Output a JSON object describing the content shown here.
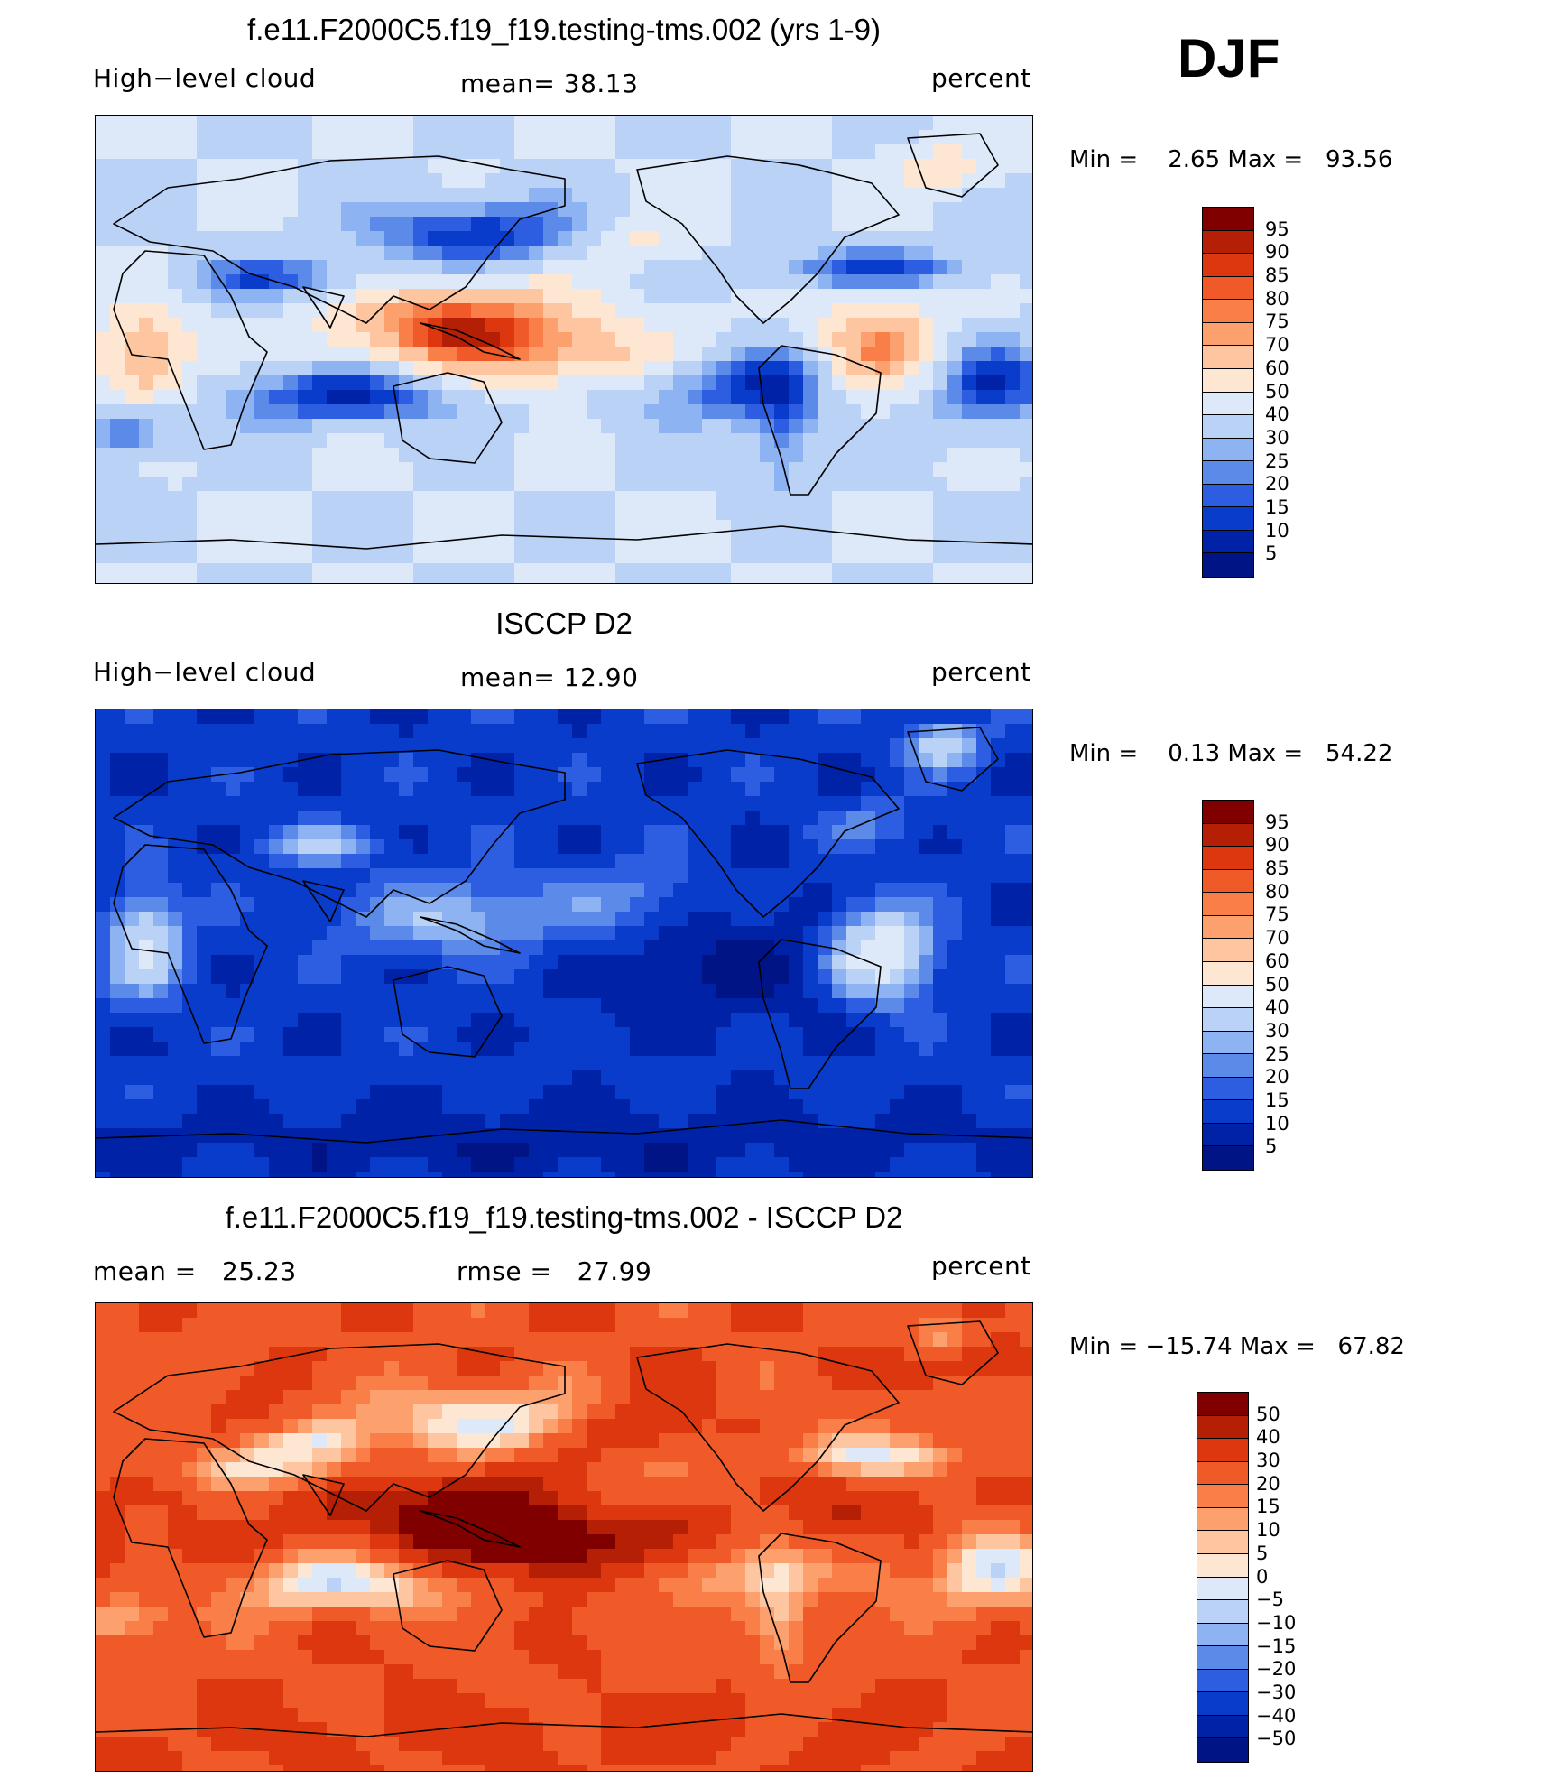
{
  "season": "DJF",
  "panels": [
    {
      "title": "f.e11.F2000C5.f19_f19.testing-tms.002 (yrs 1-9)",
      "left_label": "High−level cloud",
      "center_label": "mean=   38.13",
      "right_label": "percent",
      "minmax": "Min =    2.65 Max =   93.56",
      "field_kind": "model",
      "colorbar_labels": [
        "95",
        "90",
        "85",
        "80",
        "75",
        "70",
        "60",
        "50",
        "40",
        "30",
        "25",
        "20",
        "15",
        "10",
        "5"
      ],
      "colorbar_colors": [
        "#800000",
        "#b51f06",
        "#dd3710",
        "#f05a28",
        "#fa7e48",
        "#fca06e",
        "#fdc6a0",
        "#fde6d2",
        "#dde9f9",
        "#bad2f6",
        "#8db3f3",
        "#5b8ae8",
        "#2d5ee2",
        "#0a3ccc",
        "#0022a6",
        "#001486"
      ]
    },
    {
      "title": "ISCCP D2",
      "left_label": "High−level cloud",
      "center_label": "mean=   12.90",
      "right_label": "percent",
      "minmax": "Min =    0.13 Max =   54.22",
      "field_kind": "obs",
      "colorbar_labels": [
        "95",
        "90",
        "85",
        "80",
        "75",
        "70",
        "60",
        "50",
        "40",
        "30",
        "25",
        "20",
        "15",
        "10",
        "5"
      ],
      "colorbar_colors": [
        "#800000",
        "#b51f06",
        "#dd3710",
        "#f05a28",
        "#fa7e48",
        "#fca06e",
        "#fdc6a0",
        "#fde6d2",
        "#dde9f9",
        "#bad2f6",
        "#8db3f3",
        "#5b8ae8",
        "#2d5ee2",
        "#0a3ccc",
        "#0022a6",
        "#001486"
      ]
    },
    {
      "title": "f.e11.F2000C5.f19_f19.testing-tms.002 - ISCCP D2",
      "left_label": "mean =   25.23",
      "center_label": "rmse =   27.99",
      "right_label": "percent",
      "minmax": "Min = −15.74 Max =   67.82",
      "field_kind": "diff",
      "colorbar_labels": [
        "50",
        "40",
        "30",
        "20",
        "15",
        "10",
        "5",
        "0",
        "−5",
        "−10",
        "−15",
        "−20",
        "−30",
        "−40",
        "−50"
      ],
      "colorbar_colors": [
        "#800000",
        "#b51f06",
        "#dd3710",
        "#f05a28",
        "#fa7e48",
        "#fca06e",
        "#fdc6a0",
        "#fde6d2",
        "#dde9f9",
        "#bad2f6",
        "#8db3f3",
        "#5b8ae8",
        "#2d5ee2",
        "#0a3ccc",
        "#0022a6",
        "#001486"
      ]
    }
  ]
}
